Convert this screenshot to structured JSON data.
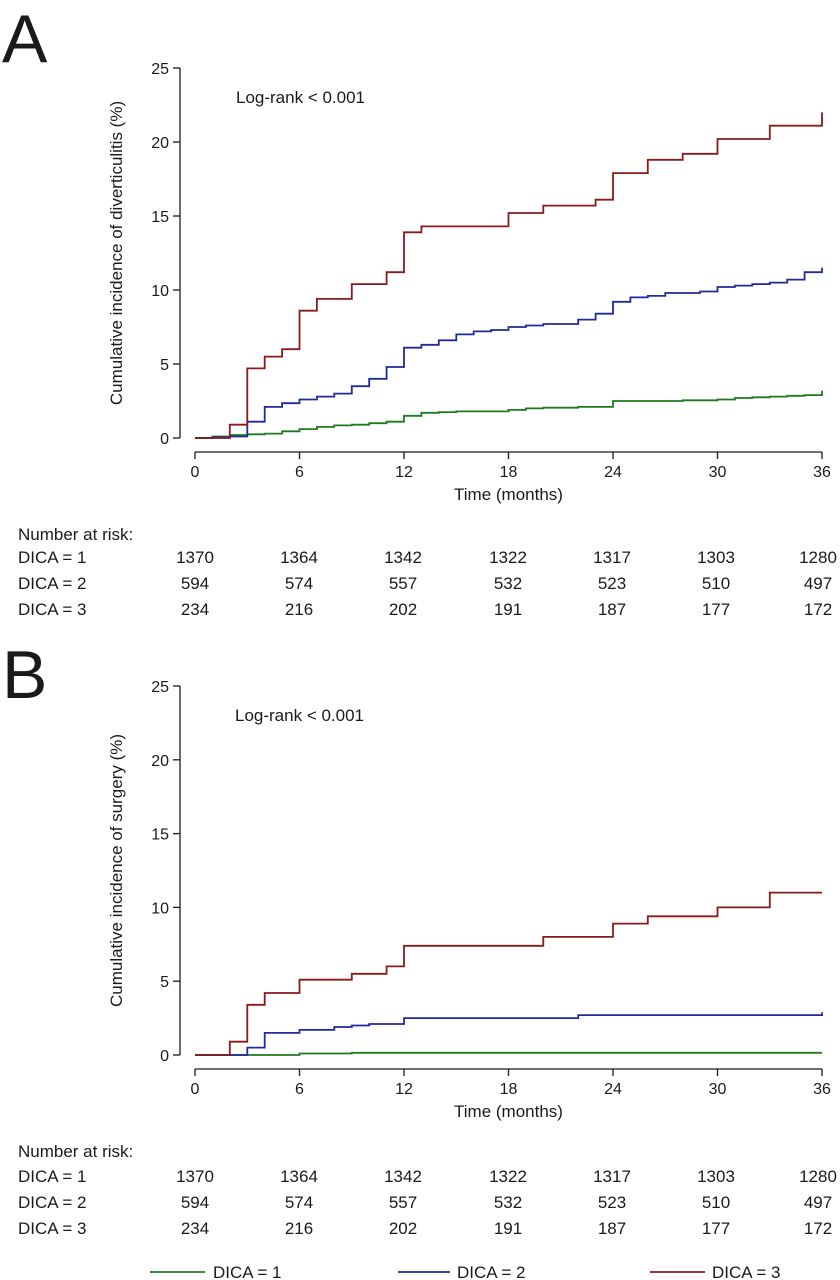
{
  "chart_data": [
    {
      "type": "line",
      "panel": "A",
      "title": "",
      "xlabel": "Time (months)",
      "ylabel": "Cumulative incidence of diverticulitis (%)",
      "xlim": [
        0,
        36
      ],
      "ylim": [
        0,
        25
      ],
      "xticks": [
        "0",
        "6",
        "12",
        "18",
        "24",
        "30",
        "36"
      ],
      "yticks": [
        "0",
        "5",
        "10",
        "15",
        "20",
        "25"
      ],
      "annotation": "Log-rank < 0.001",
      "grid": false,
      "series": [
        {
          "name": "DICA = 1",
          "color": "#1e7a1e",
          "points": [
            [
              0,
              0
            ],
            [
              1,
              0.1
            ],
            [
              2,
              0.2
            ],
            [
              3,
              0.25
            ],
            [
              4,
              0.3
            ],
            [
              5,
              0.45
            ],
            [
              6,
              0.6
            ],
            [
              7,
              0.75
            ],
            [
              8,
              0.85
            ],
            [
              9,
              0.9
            ],
            [
              10,
              1.0
            ],
            [
              11,
              1.1
            ],
            [
              12,
              1.5
            ],
            [
              13,
              1.7
            ],
            [
              14,
              1.75
            ],
            [
              15,
              1.8
            ],
            [
              18,
              1.9
            ],
            [
              19,
              2.0
            ],
            [
              20,
              2.05
            ],
            [
              22,
              2.1
            ],
            [
              24,
              2.5
            ],
            [
              26,
              2.5
            ],
            [
              28,
              2.55
            ],
            [
              30,
              2.6
            ],
            [
              31,
              2.7
            ],
            [
              32,
              2.75
            ],
            [
              33,
              2.8
            ],
            [
              34,
              2.85
            ],
            [
              35,
              2.9
            ],
            [
              36,
              3.2
            ]
          ]
        },
        {
          "name": "DICA = 2",
          "color": "#1f2a9c",
          "points": [
            [
              0,
              0
            ],
            [
              1,
              0.05
            ],
            [
              2,
              0.1
            ],
            [
              3,
              1.1
            ],
            [
              4,
              2.1
            ],
            [
              5,
              2.35
            ],
            [
              6,
              2.6
            ],
            [
              7,
              2.8
            ],
            [
              8,
              3.0
            ],
            [
              9,
              3.5
            ],
            [
              10,
              4.0
            ],
            [
              11,
              4.8
            ],
            [
              12,
              6.1
            ],
            [
              13,
              6.3
            ],
            [
              14,
              6.6
            ],
            [
              15,
              7.0
            ],
            [
              16,
              7.2
            ],
            [
              17,
              7.3
            ],
            [
              18,
              7.5
            ],
            [
              19,
              7.6
            ],
            [
              20,
              7.7
            ],
            [
              22,
              8.0
            ],
            [
              23,
              8.4
            ],
            [
              24,
              9.2
            ],
            [
              25,
              9.5
            ],
            [
              26,
              9.6
            ],
            [
              27,
              9.8
            ],
            [
              29,
              9.9
            ],
            [
              30,
              10.2
            ],
            [
              31,
              10.3
            ],
            [
              32,
              10.4
            ],
            [
              33,
              10.5
            ],
            [
              34,
              10.7
            ],
            [
              35,
              11.2
            ],
            [
              36,
              11.5
            ]
          ]
        },
        {
          "name": "DICA = 3",
          "color": "#8b1a1a",
          "points": [
            [
              0,
              0
            ],
            [
              2,
              0.9
            ],
            [
              3,
              4.7
            ],
            [
              4,
              5.5
            ],
            [
              5,
              6.0
            ],
            [
              6,
              8.6
            ],
            [
              7,
              9.4
            ],
            [
              9,
              10.4
            ],
            [
              11,
              11.2
            ],
            [
              12,
              13.9
            ],
            [
              13,
              14.3
            ],
            [
              18,
              15.2
            ],
            [
              20,
              15.7
            ],
            [
              23,
              16.1
            ],
            [
              24,
              17.9
            ],
            [
              26,
              18.8
            ],
            [
              28,
              19.2
            ],
            [
              30,
              20.2
            ],
            [
              33,
              21.1
            ],
            [
              36,
              22.0
            ]
          ]
        }
      ],
      "risk_table": {
        "title": "Number at risk:",
        "rows": [
          {
            "label": "DICA = 1",
            "values": [
              "1370",
              "1364",
              "1342",
              "1322",
              "1317",
              "1303",
              "1280"
            ]
          },
          {
            "label": "DICA = 2",
            "values": [
              "594",
              "574",
              "557",
              "532",
              "523",
              "510",
              "497"
            ]
          },
          {
            "label": "DICA = 3",
            "values": [
              "234",
              "216",
              "202",
              "191",
              "187",
              "177",
              "172"
            ]
          }
        ]
      }
    },
    {
      "type": "line",
      "panel": "B",
      "title": "",
      "xlabel": "Time (months)",
      "ylabel": "Cumulative incidence of surgery (%)",
      "xlim": [
        0,
        36
      ],
      "ylim": [
        0,
        25
      ],
      "xticks": [
        "0",
        "6",
        "12",
        "18",
        "24",
        "30",
        "36"
      ],
      "yticks": [
        "0",
        "5",
        "10",
        "15",
        "20",
        "25"
      ],
      "annotation": "Log-rank < 0.001",
      "grid": false,
      "series": [
        {
          "name": "DICA = 1",
          "color": "#1e7a1e",
          "points": [
            [
              0,
              0
            ],
            [
              6,
              0.1
            ],
            [
              9,
              0.15
            ],
            [
              36,
              0.15
            ]
          ]
        },
        {
          "name": "DICA = 2",
          "color": "#1f2a9c",
          "points": [
            [
              0,
              0
            ],
            [
              3,
              0.5
            ],
            [
              4,
              1.5
            ],
            [
              6,
              1.7
            ],
            [
              8,
              1.9
            ],
            [
              9,
              2.0
            ],
            [
              10,
              2.1
            ],
            [
              12,
              2.5
            ],
            [
              22,
              2.7
            ],
            [
              36,
              2.9
            ]
          ]
        },
        {
          "name": "DICA = 3",
          "color": "#8b1a1a",
          "points": [
            [
              0,
              0
            ],
            [
              2,
              0.9
            ],
            [
              3,
              3.4
            ],
            [
              4,
              4.2
            ],
            [
              6,
              5.1
            ],
            [
              9,
              5.5
            ],
            [
              11,
              6.0
            ],
            [
              12,
              7.4
            ],
            [
              20,
              8.0
            ],
            [
              24,
              8.9
            ],
            [
              26,
              9.4
            ],
            [
              30,
              10.0
            ],
            [
              33,
              11.0
            ],
            [
              36,
              11.0
            ]
          ]
        }
      ],
      "risk_table": {
        "title": "Number at risk:",
        "rows": [
          {
            "label": "DICA = 1",
            "values": [
              "1370",
              "1364",
              "1342",
              "1322",
              "1317",
              "1303",
              "1280"
            ]
          },
          {
            "label": "DICA = 2",
            "values": [
              "594",
              "574",
              "557",
              "532",
              "523",
              "510",
              "497"
            ]
          },
          {
            "label": "DICA = 3",
            "values": [
              "234",
              "216",
              "202",
              "191",
              "187",
              "177",
              "172"
            ]
          }
        ]
      }
    }
  ],
  "legend": {
    "placement": "bottom",
    "items": [
      {
        "label": "DICA = 1",
        "color": "#1e7a1e"
      },
      {
        "label": "DICA = 2",
        "color": "#1f2a9c"
      },
      {
        "label": "DICA = 3",
        "color": "#8b1a1a"
      }
    ]
  }
}
